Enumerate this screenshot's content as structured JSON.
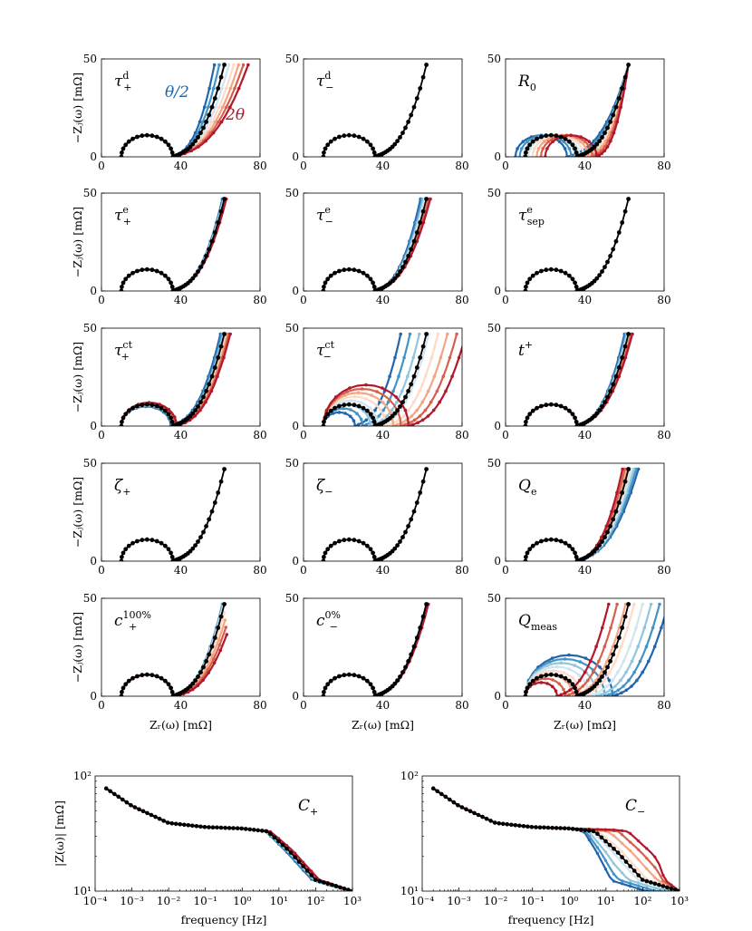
{
  "colors": {
    "ramp": [
      "#2166ac",
      "#4393c3",
      "#92c5de",
      "#d1e5f0",
      "#fddbc7",
      "#f4a582",
      "#d6604d",
      "#b2182b"
    ],
    "baseline": "#000000"
  },
  "nyquist": {
    "xlim": [
      0,
      80
    ],
    "ylim": [
      0,
      50
    ],
    "xticks": [
      "0",
      "40",
      "80"
    ],
    "yticks": [
      "0",
      "50"
    ],
    "ylabel": "−Zⱼ(ω) [mΩ]",
    "xlabel": "Zᵣ(ω) [mΩ]"
  },
  "annotations": {
    "blue": "θ/2",
    "red": "2θ"
  },
  "bode": {
    "xticks": [
      "10⁻⁴",
      "10⁻³",
      "10⁻²",
      "10⁻¹",
      "10⁰",
      "10¹",
      "10²",
      "10³"
    ],
    "yticks": [
      "10²",
      "10¹"
    ],
    "xlabel": "frequency [Hz]",
    "ylabel": "|Z(ω)| [mΩ]"
  },
  "chart_data": [
    {
      "type": "line",
      "panel": "p0",
      "label_main": "τ",
      "label_sup": "d",
      "label_sub": "+",
      "baseline": {
        "r0": 10,
        "r1": 26,
        "tail_x": 62,
        "tail_y": 47
      },
      "sensitivity": {
        "tail_shift": [
          -5,
          12
        ],
        "arc_r1": [
          0,
          0
        ],
        "arc_h": [
          0,
          0
        ],
        "r0_shift": [
          0,
          0
        ]
      }
    },
    {
      "type": "line",
      "panel": "p1",
      "label_main": "τ",
      "label_sup": "d",
      "label_sub": "−",
      "baseline": {
        "r0": 10,
        "r1": 26,
        "tail_x": 62,
        "tail_y": 47
      },
      "sensitivity": {
        "tail_shift": [
          0,
          0
        ],
        "arc_r1": [
          0,
          0
        ],
        "arc_h": [
          0,
          0
        ],
        "r0_shift": [
          0,
          0
        ]
      }
    },
    {
      "type": "line",
      "panel": "p2",
      "label_main": "R",
      "label_sup": "",
      "label_sub": "0",
      "baseline": {
        "r0": 10,
        "r1": 26,
        "tail_x": 62,
        "tail_y": 47
      },
      "sensitivity": {
        "tail_shift": [
          0,
          0
        ],
        "arc_r1": [
          0,
          0
        ],
        "arc_h": [
          0,
          0
        ],
        "r0_shift": [
          -5,
          10
        ]
      }
    },
    {
      "type": "line",
      "panel": "p3",
      "label_main": "τ",
      "label_sup": "e",
      "label_sub": "+",
      "baseline": {
        "r0": 10,
        "r1": 26,
        "tail_x": 62,
        "tail_y": 47
      },
      "sensitivity": {
        "tail_shift": [
          -1,
          1
        ],
        "arc_r1": [
          0,
          0
        ],
        "arc_h": [
          0,
          0
        ],
        "r0_shift": [
          0,
          0
        ]
      }
    },
    {
      "type": "line",
      "panel": "p4",
      "label_main": "τ",
      "label_sup": "e",
      "label_sub": "−",
      "baseline": {
        "r0": 10,
        "r1": 26,
        "tail_x": 62,
        "tail_y": 47
      },
      "sensitivity": {
        "tail_shift": [
          -3,
          2
        ],
        "arc_r1": [
          0,
          0
        ],
        "arc_h": [
          0,
          0
        ],
        "r0_shift": [
          0,
          0
        ]
      }
    },
    {
      "type": "line",
      "panel": "p5",
      "label_main": "τ",
      "label_sup": "e",
      "label_sub": "sep",
      "baseline": {
        "r0": 10,
        "r1": 26,
        "tail_x": 62,
        "tail_y": 47
      },
      "sensitivity": {
        "tail_shift": [
          0,
          0
        ],
        "arc_r1": [
          0,
          0
        ],
        "arc_h": [
          0,
          0
        ],
        "r0_shift": [
          0,
          0
        ]
      }
    },
    {
      "type": "line",
      "panel": "p6",
      "label_main": "τ",
      "label_sup": "ct",
      "label_sub": "+",
      "baseline": {
        "r0": 10,
        "r1": 26,
        "tail_x": 62,
        "tail_y": 47
      },
      "sensitivity": {
        "tail_shift": [
          -2,
          3
        ],
        "arc_r1": [
          -1,
          2
        ],
        "arc_h": [
          -1,
          1
        ],
        "r0_shift": [
          0,
          0
        ]
      }
    },
    {
      "type": "line",
      "panel": "p7",
      "label_main": "τ",
      "label_sup": "ct",
      "label_sub": "−",
      "baseline": {
        "r0": 10,
        "r1": 26,
        "tail_x": 62,
        "tail_y": 47
      },
      "sensitivity": {
        "tail_shift": [
          -13,
          20
        ],
        "arc_r1": [
          -10,
          17
        ],
        "arc_h": [
          -4,
          10
        ],
        "r0_shift": [
          0,
          0
        ]
      }
    },
    {
      "type": "line",
      "panel": "p8",
      "label_main": "t",
      "label_sup": "+",
      "label_sub": "",
      "baseline": {
        "r0": 10,
        "r1": 26,
        "tail_x": 62,
        "tail_y": 47
      },
      "sensitivity": {
        "tail_shift": [
          -2,
          2
        ],
        "arc_r1": [
          0,
          0
        ],
        "arc_h": [
          0,
          0
        ],
        "r0_shift": [
          0,
          0
        ]
      }
    },
    {
      "type": "line",
      "panel": "p9",
      "label_main": "ζ",
      "label_sup": "",
      "label_sub": "+",
      "baseline": {
        "r0": 10,
        "r1": 26,
        "tail_x": 62,
        "tail_y": 47
      },
      "sensitivity": {
        "tail_shift": [
          0,
          0
        ],
        "arc_r1": [
          0,
          0
        ],
        "arc_h": [
          0,
          0
        ],
        "r0_shift": [
          0,
          0
        ]
      }
    },
    {
      "type": "line",
      "panel": "p10",
      "label_main": "ζ",
      "label_sup": "",
      "label_sub": "−",
      "baseline": {
        "r0": 10,
        "r1": 26,
        "tail_x": 62,
        "tail_y": 47
      },
      "sensitivity": {
        "tail_shift": [
          0,
          0
        ],
        "arc_r1": [
          0,
          0
        ],
        "arc_h": [
          0,
          0
        ],
        "r0_shift": [
          0,
          0
        ]
      }
    },
    {
      "type": "line",
      "panel": "p11",
      "label_main": "Q",
      "label_sup": "",
      "label_sub": "e",
      "baseline": {
        "r0": 10,
        "r1": 26,
        "tail_x": 62,
        "tail_y": 47
      },
      "sensitivity": {
        "tail_shift": [
          5,
          -3
        ],
        "arc_r1": [
          0,
          0
        ],
        "arc_h": [
          0,
          0
        ],
        "r0_shift": [
          0,
          0
        ]
      }
    },
    {
      "type": "line",
      "panel": "p12",
      "label_main": "c",
      "label_sup": "100%",
      "label_sub": "+",
      "baseline": {
        "r0": 10,
        "r1": 26,
        "tail_x": 62,
        "tail_y": 47
      },
      "sensitivity": {
        "tail_shift": [
          -1,
          0
        ],
        "arc_r1": [
          0,
          0
        ],
        "arc_h": [
          0,
          0
        ],
        "r0_shift": [
          0,
          0
        ],
        "red_droop": 1
      }
    },
    {
      "type": "line",
      "panel": "p13",
      "label_main": "c",
      "label_sup": "0%",
      "label_sub": "−",
      "baseline": {
        "r0": 10,
        "r1": 26,
        "tail_x": 62,
        "tail_y": 47
      },
      "sensitivity": {
        "tail_shift": [
          0,
          1
        ],
        "arc_r1": [
          0,
          0
        ],
        "arc_h": [
          0,
          0
        ],
        "r0_shift": [
          0,
          0
        ]
      }
    },
    {
      "type": "line",
      "panel": "p14",
      "label_main": "Q",
      "label_sup": "",
      "label_sub": "meas",
      "baseline": {
        "r0": 10,
        "r1": 26,
        "tail_x": 62,
        "tail_y": 47
      },
      "sensitivity": {
        "tail_shift": [
          20,
          -10
        ],
        "arc_r1": [
          18,
          -10
        ],
        "arc_h": [
          10,
          -4
        ],
        "r0_shift": [
          0,
          0
        ]
      }
    },
    {
      "type": "line",
      "panel": "b0",
      "label_main": "C",
      "label_sub": "+",
      "log_x": true,
      "log_y": true,
      "xlim": [
        0.0001,
        1000
      ],
      "ylim": [
        10,
        100
      ],
      "x": [
        0.0002,
        0.001,
        0.01,
        0.1,
        1,
        5,
        20,
        100,
        1000
      ],
      "y": [
        78,
        55,
        39,
        36,
        35,
        33,
        22,
        12.5,
        10
      ],
      "spread": 0.05
    },
    {
      "type": "line",
      "panel": "b1",
      "label_main": "C",
      "label_sub": "−",
      "log_x": true,
      "log_y": true,
      "xlim": [
        0.0001,
        1000
      ],
      "ylim": [
        10,
        100
      ],
      "x": [
        0.0002,
        0.001,
        0.01,
        0.1,
        1,
        5,
        20,
        100,
        1000
      ],
      "y": [
        78,
        55,
        39,
        36,
        35,
        33,
        22,
        12.5,
        10
      ],
      "spread": 0.45
    }
  ]
}
